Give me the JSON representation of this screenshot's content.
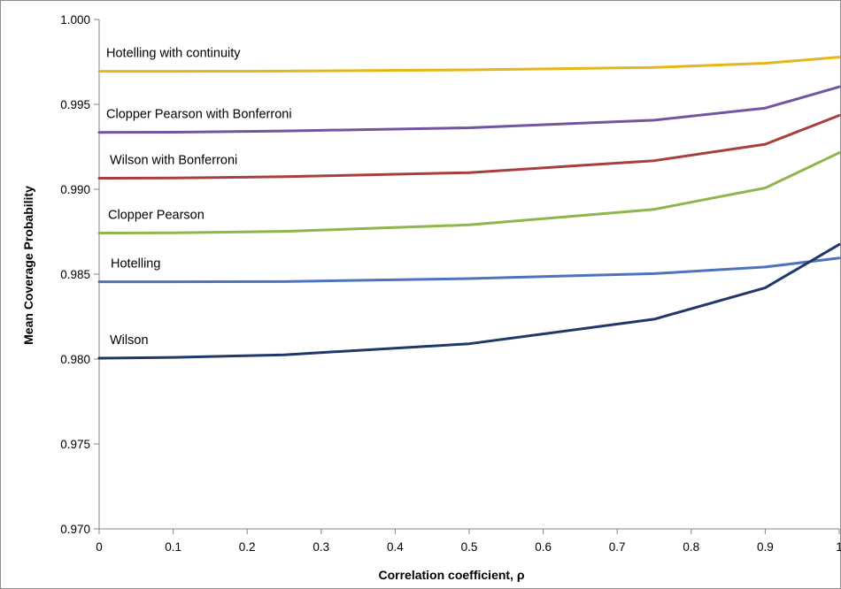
{
  "chart_data": {
    "type": "line",
    "title": "",
    "xlabel": "Correlation coefficient, ρ",
    "ylabel": "Mean Coverage Probability",
    "xlim": [
      0,
      1
    ],
    "ylim": [
      0.97,
      1.0
    ],
    "x_ticks": [
      0,
      0.1,
      0.2,
      0.3,
      0.4,
      0.5,
      0.6,
      0.7,
      0.8,
      0.9,
      1
    ],
    "x_tick_labels": [
      "0",
      "0.1",
      "0.2",
      "0.3",
      "0.4",
      "0.5",
      "0.6",
      "0.7",
      "0.8",
      "0.9",
      "1"
    ],
    "y_ticks": [
      0.97,
      0.975,
      0.98,
      0.985,
      0.99,
      0.995,
      1.0
    ],
    "y_tick_labels": [
      "0.970",
      "0.975",
      "0.980",
      "0.985",
      "0.990",
      "0.995",
      "1.000"
    ],
    "grid": false,
    "legend": "inline labels",
    "x": [
      0,
      0.1,
      0.25,
      0.5,
      0.75,
      0.9,
      1
    ],
    "series": [
      {
        "name": "Hotelling with continuity",
        "color": "#E6B51C",
        "values": [
          0.99695,
          0.99695,
          0.99696,
          0.99703,
          0.99717,
          0.99742,
          0.99778
        ]
      },
      {
        "name": "Clopper Pearson with Bonferroni",
        "color": "#7255A0",
        "values": [
          0.99335,
          0.99336,
          0.99343,
          0.99362,
          0.99407,
          0.99478,
          0.99603
        ]
      },
      {
        "name": "Wilson with Bonferroni",
        "color": "#A7403D",
        "values": [
          0.99065,
          0.99066,
          0.99074,
          0.99098,
          0.99168,
          0.99265,
          0.99435
        ]
      },
      {
        "name": "Clopper Pearson",
        "color": "#8FB54C",
        "values": [
          0.98742,
          0.98743,
          0.98752,
          0.9879,
          0.98882,
          0.99008,
          0.99215
        ]
      },
      {
        "name": "Hotelling",
        "color": "#4E73BE",
        "values": [
          0.98455,
          0.98455,
          0.98456,
          0.98474,
          0.98503,
          0.98542,
          0.98595
        ]
      },
      {
        "name": "Wilson",
        "color": "#1F3868",
        "values": [
          0.98005,
          0.9801,
          0.98025,
          0.9809,
          0.98235,
          0.9842,
          0.98675
        ]
      }
    ]
  }
}
